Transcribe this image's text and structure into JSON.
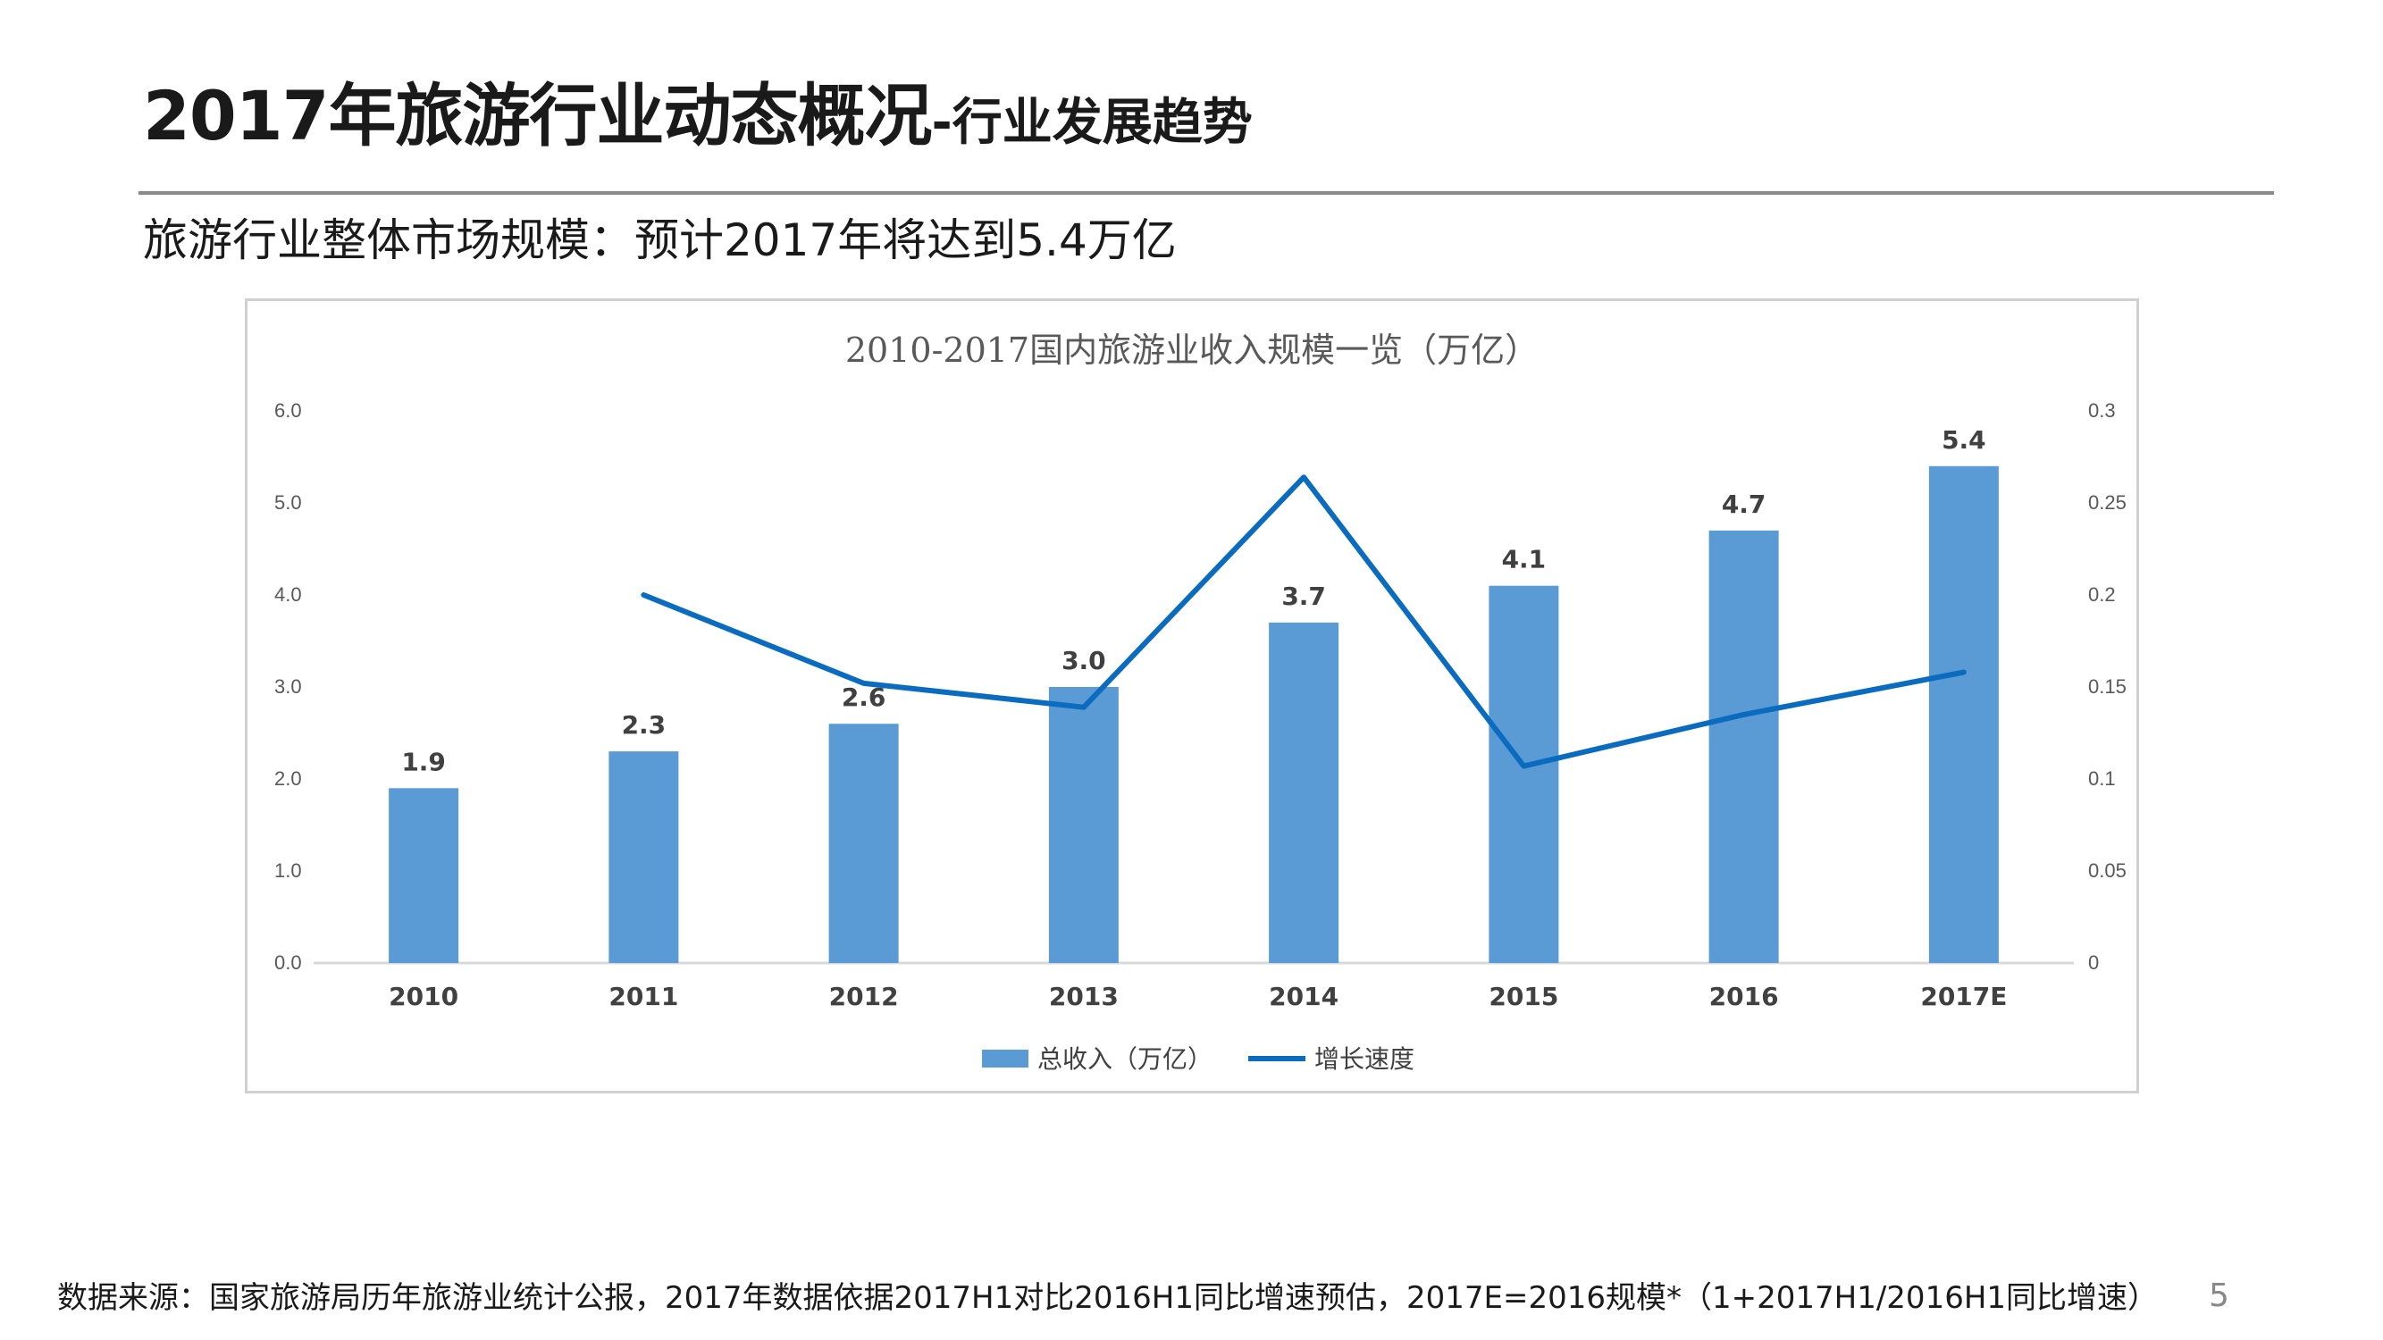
{
  "slide": {
    "title_main": "2017年旅游行业动态概况",
    "title_sub": "-行业发展趋势",
    "subheading": "旅游行业整体市场规模：预计2017年将达到5.4万亿",
    "footnote": "数据来源：国家旅游局历年旅游业统计公报，2017年数据依据2017H1对比2016H1同比增速预估，2017E=2016规模*（1+2017H1/2016H1同比增速）",
    "page_number": "5"
  },
  "chart_data": {
    "type": "bar",
    "title": "2010-2017国内旅游业收入规模一览（万亿）",
    "categories": [
      "2010",
      "2011",
      "2012",
      "2013",
      "2014",
      "2015",
      "2016",
      "2017E"
    ],
    "series": [
      {
        "name": "总收入（万亿）",
        "type": "bar",
        "axis": "left",
        "values": [
          1.9,
          2.3,
          2.6,
          3.0,
          3.7,
          4.1,
          4.7,
          5.4
        ],
        "data_labels": [
          "1.9",
          "2.3",
          "2.6",
          "3.0",
          "3.7",
          "4.1",
          "4.7",
          "5.4"
        ],
        "color": "#5b9bd5"
      },
      {
        "name": "增长速度",
        "type": "line",
        "axis": "right",
        "values": [
          null,
          0.2,
          0.152,
          0.139,
          0.264,
          0.107,
          0.135,
          0.158
        ],
        "color": "#0b6cbf"
      }
    ],
    "y_left": {
      "ylim": [
        0,
        6
      ],
      "ticks": [
        "0.0",
        "1.0",
        "2.0",
        "3.0",
        "4.0",
        "5.0",
        "6.0"
      ]
    },
    "y_right": {
      "ylim": [
        0,
        0.3
      ],
      "ticks": [
        "0",
        "0.05",
        "0.1",
        "0.15",
        "0.2",
        "0.25",
        "0.3"
      ]
    },
    "grid": false,
    "legend": "bottom",
    "colors": {
      "bar": "#5b9bd5",
      "line": "#0b6cbf",
      "axis": "#d9d9d9",
      "tick_text": "#595959",
      "category_text": "#404040"
    }
  }
}
